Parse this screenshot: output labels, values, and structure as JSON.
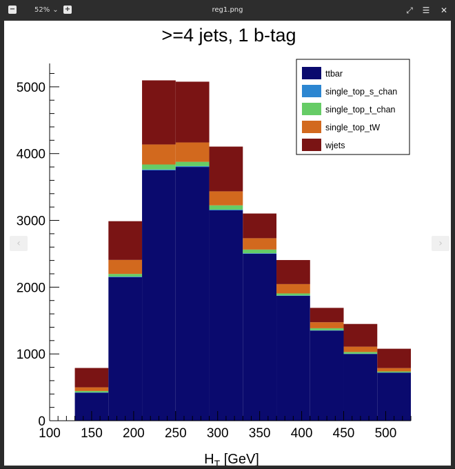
{
  "viewer": {
    "zoom_label": "52%",
    "file_title": "reg1.png",
    "minus_label": "−",
    "plus_label": "+",
    "prev_label": "‹",
    "next_label": "›"
  },
  "chart_data": {
    "type": "bar",
    "stacked": true,
    "title": ">=4 jets, 1 b-tag",
    "xlabel": "H_T [GeV]",
    "ylabel": "",
    "xlim": [
      100,
      530
    ],
    "ylim": [
      0,
      5350
    ],
    "bin_edges": [
      130,
      170,
      210,
      250,
      290,
      330,
      370,
      410,
      450,
      490,
      530
    ],
    "x_ticks": [
      100,
      150,
      200,
      250,
      300,
      350,
      400,
      450,
      500
    ],
    "y_ticks": [
      0,
      1000,
      2000,
      3000,
      4000,
      5000
    ],
    "legend_position": "top-right",
    "series": [
      {
        "name": "ttbar",
        "color": "#0a0a6e",
        "values": [
          420,
          2150,
          3750,
          3800,
          3150,
          2500,
          1870,
          1350,
          1000,
          720
        ]
      },
      {
        "name": "single_top_s_chan",
        "color": "#2c86d1",
        "values": [
          5,
          8,
          12,
          12,
          10,
          8,
          6,
          5,
          4,
          3
        ]
      },
      {
        "name": "single_top_t_chan",
        "color": "#66cc66",
        "values": [
          20,
          40,
          75,
          65,
          65,
          55,
          30,
          30,
          25,
          15
        ]
      },
      {
        "name": "single_top_tW",
        "color": "#d2691e",
        "values": [
          55,
          210,
          300,
          290,
          210,
          170,
          140,
          90,
          80,
          50
        ]
      },
      {
        "name": "wjets",
        "color": "#7a1414",
        "values": [
          290,
          580,
          960,
          910,
          670,
          370,
          360,
          215,
          340,
          290
        ]
      }
    ]
  }
}
